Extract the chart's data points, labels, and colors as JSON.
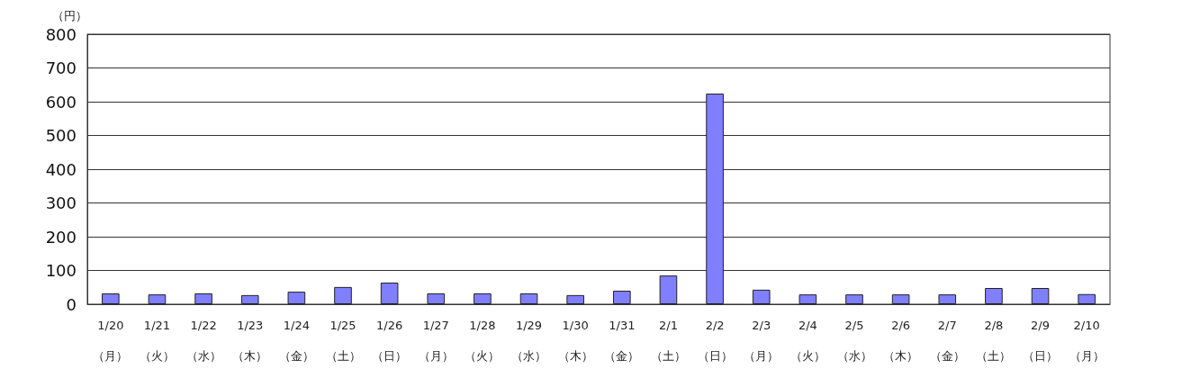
{
  "chart_data": {
    "type": "bar",
    "ylabel": "（円）",
    "categories": [
      "1/20\n（月）",
      "1/21\n（火）",
      "1/22\n（水）",
      "1/23\n（木）",
      "1/24\n（金）",
      "1/25\n（土）",
      "1/26\n（日）",
      "1/27\n（月）",
      "1/28\n（火）",
      "1/29\n（水）",
      "1/30\n（木）",
      "1/31\n（金）",
      "2/1\n（土）",
      "2/2\n（日）",
      "2/3\n（月）",
      "2/4\n（火）",
      "2/5\n（水）",
      "2/6\n（木）",
      "2/7\n（金）",
      "2/8\n（土）",
      "2/9\n（日）",
      "2/10\n（月）"
    ],
    "values": [
      32,
      29,
      32,
      27,
      37,
      51,
      64,
      32,
      32,
      32,
      27,
      40,
      85,
      624,
      43,
      29,
      29,
      29,
      29,
      48,
      48,
      30
    ],
    "color": "#7f7fff",
    "ylim": [
      0,
      800
    ],
    "yticks": [
      0,
      100,
      200,
      300,
      400,
      500,
      600,
      700,
      800
    ],
    "grid": "y"
  }
}
